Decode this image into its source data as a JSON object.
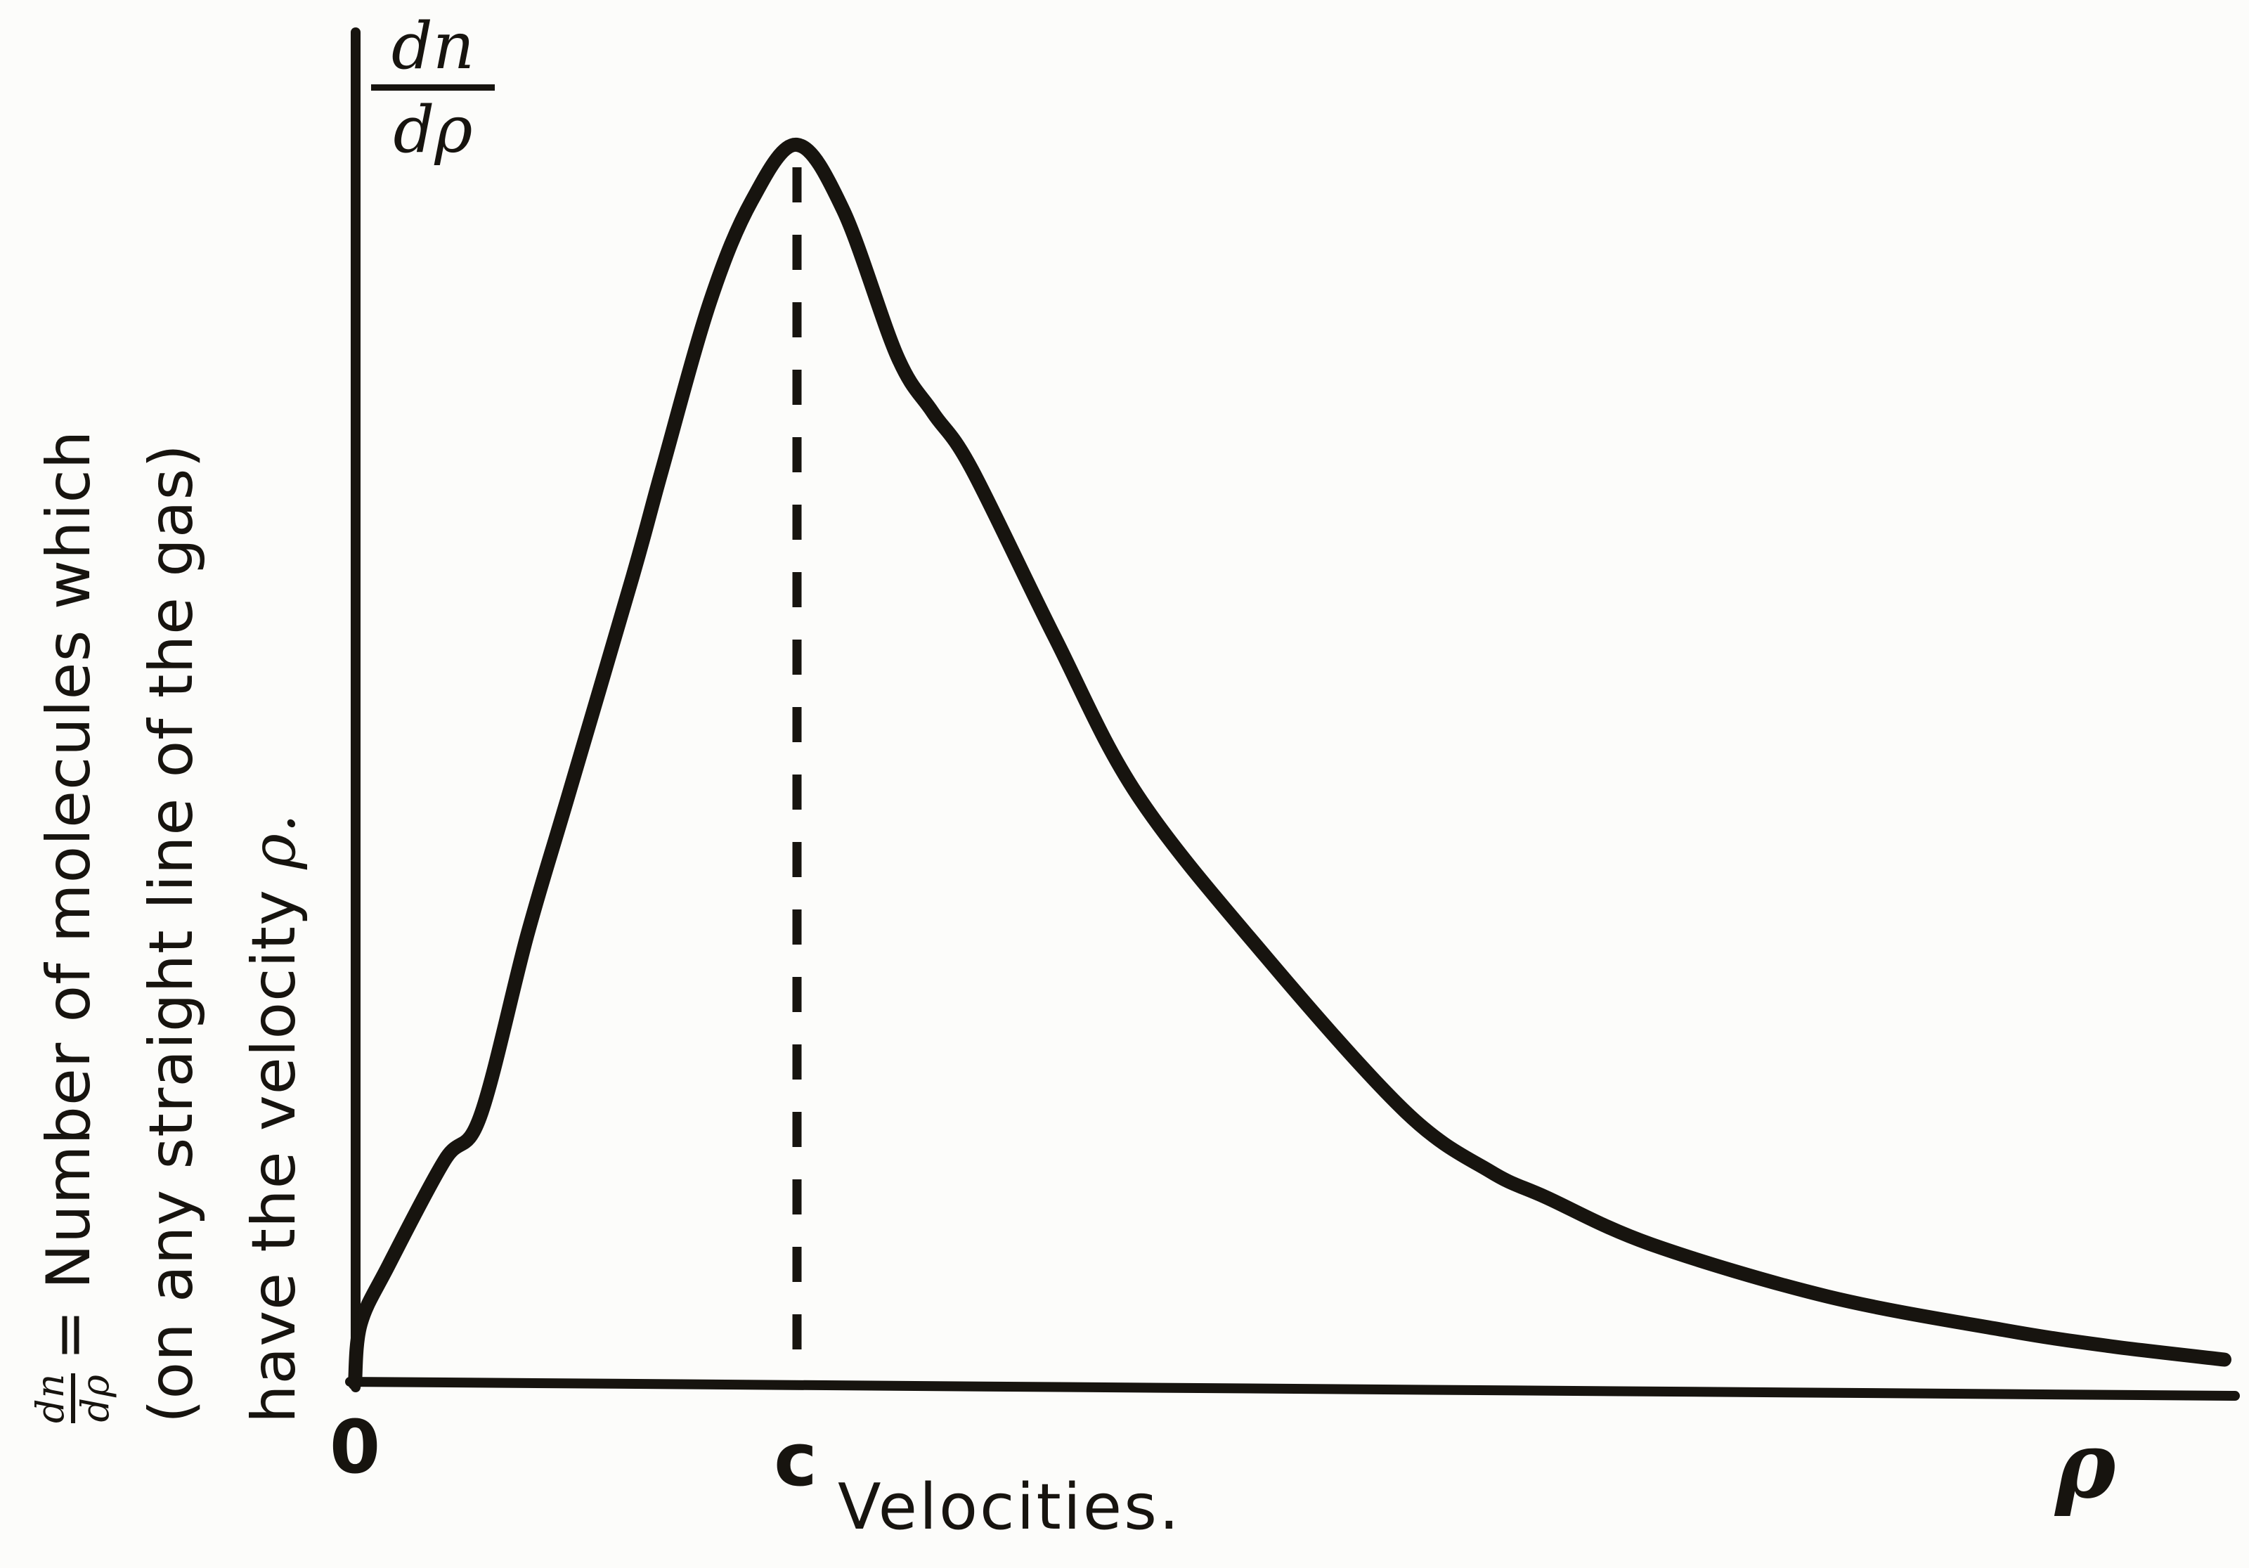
{
  "figure": {
    "kind": "scanned textbook figure",
    "background_color": "#fcfcfa",
    "ink_color": "#17140f"
  },
  "chart_data": {
    "type": "line",
    "title": "",
    "xlabel": "Velocities.",
    "x_axis_symbol": "ρ",
    "origin_label": "0",
    "peak_label": "c",
    "ylabel_numerator": "dn",
    "ylabel_denominator": "dρ",
    "y_axis_description": [
      "dn/dρ = Number of molecules which",
      "(on any straight line of the gas)",
      "have the velocity ρ."
    ],
    "y_desc_line1_rest": "= Number of molecules which",
    "y_desc_line2": "(on any straight line of the gas)",
    "y_desc_line3_text": "have the velocity",
    "y_desc_line3_symbol": "ρ.",
    "x_range_in_units_of_c": [
      0,
      4.3
    ],
    "y_range_normalized": [
      0,
      1
    ],
    "dashed_line_at_x": 1,
    "grid": false,
    "legend": "none",
    "axis_color": "#17140f",
    "curve_color": "#17140f",
    "series": [
      {
        "name": "dn/dρ velocity distribution",
        "points": [
          [
            0.0,
            0.0
          ],
          [
            0.013,
            0.048
          ],
          [
            0.076,
            0.095
          ],
          [
            0.203,
            0.18
          ],
          [
            0.283,
            0.215
          ],
          [
            0.39,
            0.362
          ],
          [
            0.479,
            0.47
          ],
          [
            0.628,
            0.651
          ],
          [
            0.695,
            0.738
          ],
          [
            0.803,
            0.873
          ],
          [
            0.898,
            0.955
          ],
          [
            1.0,
            1.0
          ],
          [
            1.105,
            0.947
          ],
          [
            1.227,
            0.829
          ],
          [
            1.307,
            0.784
          ],
          [
            1.394,
            0.739
          ],
          [
            1.582,
            0.603
          ],
          [
            1.77,
            0.475
          ],
          [
            2.059,
            0.345
          ],
          [
            2.377,
            0.219
          ],
          [
            2.568,
            0.171
          ],
          [
            2.695,
            0.15
          ],
          [
            2.933,
            0.112
          ],
          [
            3.331,
            0.07
          ],
          [
            3.728,
            0.043
          ],
          [
            3.967,
            0.03
          ],
          [
            4.229,
            0.019
          ]
        ]
      }
    ]
  }
}
